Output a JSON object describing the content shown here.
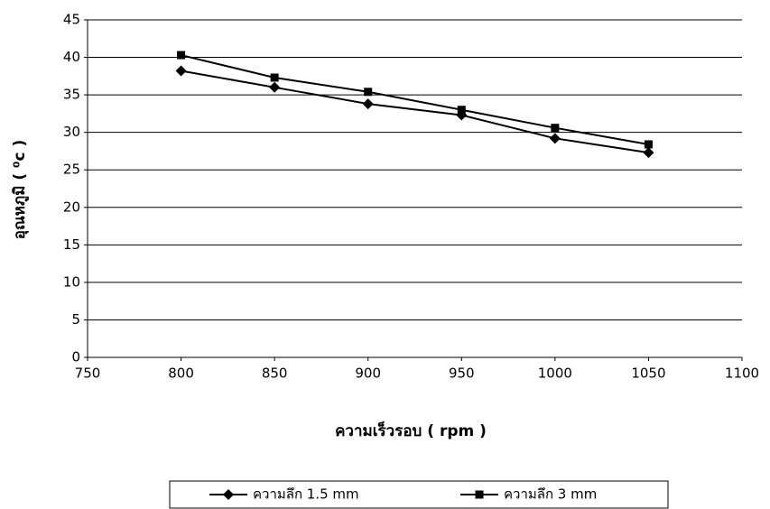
{
  "chart_data": {
    "type": "line",
    "x_label": "ความเร็วรอบ ( rpm )",
    "y_label": "อุณหภูมิ ( ⁰c )",
    "x": [
      800,
      850,
      900,
      950,
      1000,
      1050
    ],
    "series": [
      {
        "name": "ความลึก 1.5 mm",
        "color": "#000000",
        "marker": "diamond",
        "values": [
          38.2,
          36,
          33.8,
          32.3,
          29.2,
          27.3
        ]
      },
      {
        "name": "ความลึก 3 mm",
        "color": "#000000",
        "marker": "square",
        "values": [
          40.3,
          37.3,
          35.4,
          33,
          30.6,
          28.4
        ]
      }
    ],
    "xlim": [
      750,
      1100
    ],
    "xticks": [
      750,
      800,
      850,
      900,
      950,
      1000,
      1050,
      1100
    ],
    "ylim": [
      0,
      45
    ],
    "yticks": [
      0,
      5,
      10,
      15,
      20,
      25,
      30,
      35,
      40,
      45
    ],
    "grid": true,
    "legend": "bottom"
  }
}
